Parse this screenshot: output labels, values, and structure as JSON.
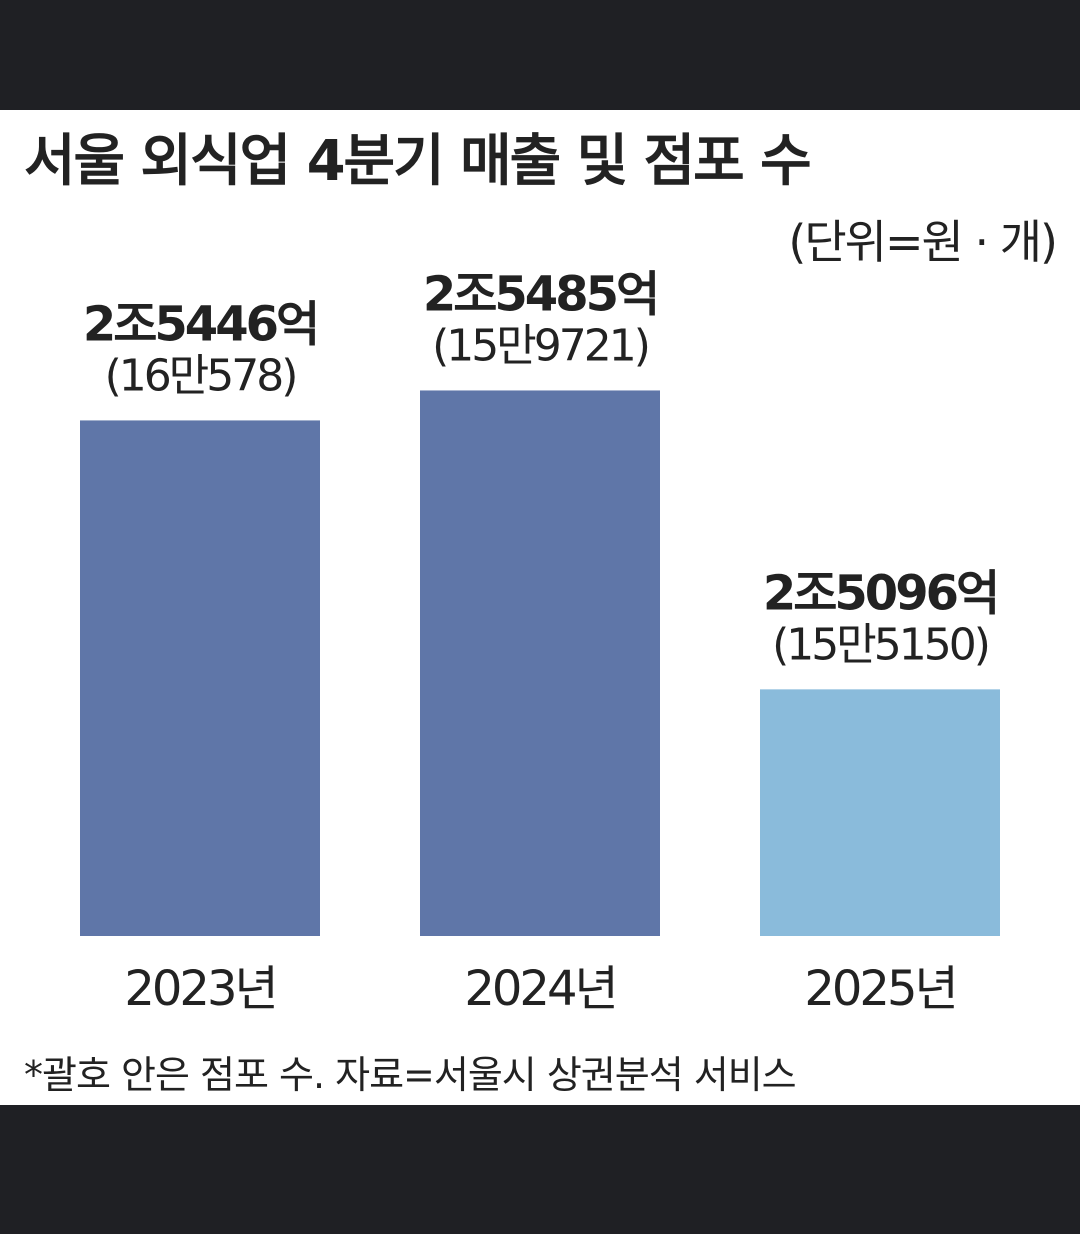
{
  "chart_data": {
    "type": "bar",
    "title": "서울 외식업 4분기 매출 및 점포 수",
    "subtitle": "(단위=원 · 개)",
    "note": "*괄호 안은 점포 수. 자료=서울시 상권분석 서비스",
    "categories": [
      "2023년",
      "2024년",
      "2025년"
    ],
    "values": [
      25446,
      25485,
      25096
    ],
    "value_labels": [
      "2조5446억",
      "2조5485억",
      "2조5096억"
    ],
    "colors": [
      "#5f76a8",
      "#5f76a8",
      "#8abbdb"
    ],
    "store_counts": [
      160578,
      159721,
      155150
    ],
    "store_count_labels": [
      "(16만578)",
      "(15만9721)",
      "(15만5150)"
    ],
    "ylim": [
      24775,
      25850
    ]
  }
}
